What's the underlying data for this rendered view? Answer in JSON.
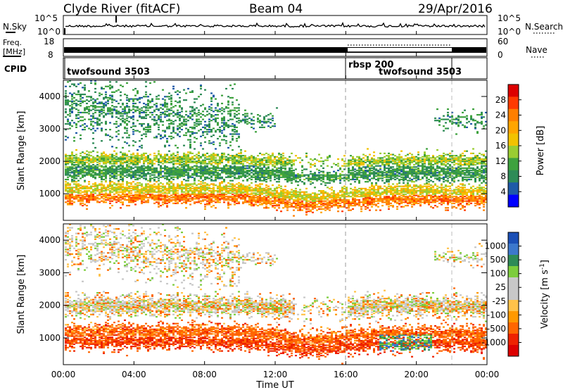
{
  "chart_data": {
    "type": "heatmap",
    "station": "Clyde River (fitACF)",
    "beam": "Beam 04",
    "date": "29/Apr/2016",
    "header": {
      "nsky": {
        "label": "N.Sky",
        "ticks": [
          "10^5",
          "10^0"
        ]
      },
      "nsearch": {
        "label": "N.Search"
      },
      "freq": {
        "label_top": "Freq.",
        "label_bottom": "[MHz]",
        "ticks": [
          "18",
          "8"
        ]
      },
      "nave": {
        "label": "Nave",
        "ticks": [
          "60",
          "0"
        ]
      },
      "cpid": {
        "label": "CPID",
        "segments": [
          {
            "name": "twofsound 3503",
            "start_hour": 0,
            "end_hour": 16
          },
          {
            "name": "rbsp 200",
            "start_hour": 16,
            "end_hour": 22
          },
          {
            "name": "twofsound 3503",
            "start_hour": 16,
            "end_hour": 22
          }
        ]
      }
    },
    "xaxis": {
      "label": "Time UT",
      "range_hours": [
        0,
        24
      ],
      "tick_labels": [
        "00:00",
        "04:00",
        "08:00",
        "12:00",
        "16:00",
        "20:00",
        "00:00"
      ]
    },
    "yaxis": {
      "label": "Slant Range [km]",
      "range_km": [
        180,
        4500
      ],
      "tick_labels": [
        "1000",
        "2000",
        "3000",
        "4000"
      ]
    },
    "mode_change_hours": [
      16,
      22
    ],
    "panels": [
      {
        "name": "power",
        "colorbar": {
          "label": "Power [dB]",
          "tick_labels": [
            "28",
            "24",
            "20",
            "16",
            "12",
            "8",
            "4"
          ],
          "colors": [
            "#dd0000",
            "#ff3a00",
            "#ff7f00",
            "#ffa500",
            "#f2c200",
            "#9acd32",
            "#3ea23e",
            "#2e8b57",
            "#1e5aa8",
            "#0000ff"
          ]
        },
        "bands": [
          {
            "center_km": 900,
            "halfwidth_km": 180,
            "value_db": 25
          },
          {
            "center_km": 1150,
            "halfwidth_km": 180,
            "value_db": 17
          },
          {
            "center_km": 1700,
            "halfwidth_km": 250,
            "value_db": 9
          },
          {
            "center_km": 2050,
            "halfwidth_km": 180,
            "value_db": 14
          },
          {
            "center_km": 3300,
            "halfwidth_km": 700,
            "value_db": 8
          }
        ]
      },
      {
        "name": "velocity",
        "colorbar": {
          "label": "Velocity [m s^-1]",
          "tick_labels": [
            "1000",
            "500",
            "100",
            "25",
            "-25",
            "-100",
            "-500",
            "-1000"
          ],
          "colors": [
            "#1b4fb6",
            "#3c78cc",
            "#2e8b57",
            "#7ccd3c",
            "#c8c8c8",
            "#c8c8c8",
            "#ffc24a",
            "#ff9900",
            "#ff6600",
            "#ee2200",
            "#dd0000"
          ]
        },
        "bands": [
          {
            "center_km": 900,
            "halfwidth_km": 200,
            "value_ms": -300
          },
          {
            "center_km": 1200,
            "halfwidth_km": 200,
            "value_ms": -200
          },
          {
            "center_km": 2000,
            "halfwidth_km": 250,
            "value_ms": 0
          },
          {
            "center_km": 3500,
            "halfwidth_km": 600,
            "value_ms": 0
          }
        ],
        "positive_patch": {
          "start_hour": 17.8,
          "end_hour": 20.8,
          "center_km": 850,
          "halfwidth_km": 250,
          "value_ms": 400
        }
      }
    ]
  }
}
